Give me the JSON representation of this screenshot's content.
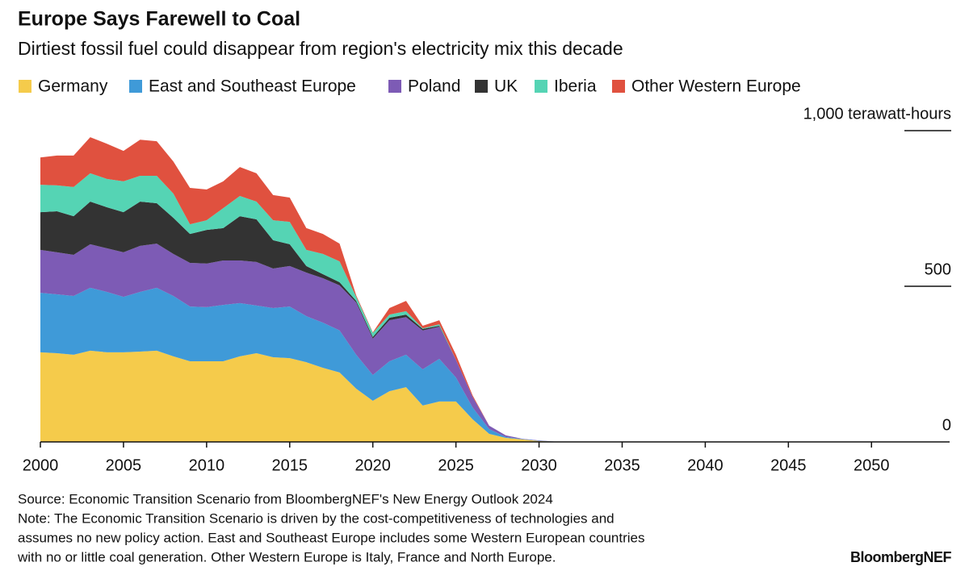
{
  "chart_data": {
    "type": "stacked_area",
    "title": "Europe Says Farewell to Coal",
    "subtitle": "Dirtiest fossil fuel could disappear from region's electricity mix this decade",
    "x": [
      2000,
      2001,
      2002,
      2003,
      2004,
      2005,
      2006,
      2007,
      2008,
      2009,
      2010,
      2011,
      2012,
      2013,
      2014,
      2015,
      2016,
      2017,
      2018,
      2019,
      2020,
      2021,
      2022,
      2023,
      2024,
      2025,
      2026,
      2027,
      2028,
      2029,
      2030,
      2031,
      2032
    ],
    "series": [
      {
        "name": "Germany",
        "color": "#f5cb4b",
        "values": [
          288,
          285,
          280,
          293,
          288,
          288,
          290,
          293,
          275,
          259,
          259,
          259,
          275,
          285,
          272,
          269,
          256,
          238,
          223,
          171,
          132,
          163,
          176,
          117,
          130,
          130,
          73,
          26,
          13,
          8,
          3,
          1,
          0
        ]
      },
      {
        "name": "East and Southeast Europe",
        "color": "#3f9ad8",
        "values": [
          191,
          189,
          189,
          202,
          194,
          178,
          192,
          202,
          194,
          176,
          174,
          181,
          171,
          153,
          158,
          166,
          148,
          145,
          135,
          109,
          83,
          96,
          104,
          116,
          137,
          77,
          38,
          15,
          3,
          1,
          1,
          0,
          0
        ]
      },
      {
        "name": "Poland",
        "color": "#7d5bb5",
        "values": [
          138,
          135,
          132,
          140,
          140,
          143,
          148,
          142,
          135,
          140,
          140,
          143,
          137,
          140,
          127,
          130,
          140,
          143,
          145,
          168,
          117,
          132,
          121,
          125,
          103,
          57,
          34,
          11,
          5,
          1,
          1,
          0,
          0
        ]
      },
      {
        "name": "UK",
        "color": "#333333",
        "values": [
          121,
          132,
          124,
          137,
          132,
          129,
          142,
          130,
          116,
          93,
          108,
          104,
          142,
          137,
          91,
          70,
          21,
          13,
          10,
          5,
          5,
          8,
          8,
          5,
          3,
          0,
          0,
          0,
          0,
          0,
          0,
          0,
          0
        ]
      },
      {
        "name": "Iberia",
        "color": "#55d4b4",
        "values": [
          88,
          83,
          94,
          91,
          91,
          99,
          83,
          88,
          78,
          31,
          31,
          64,
          65,
          57,
          64,
          72,
          52,
          65,
          67,
          13,
          13,
          10,
          11,
          2,
          5,
          0,
          0,
          0,
          0,
          0,
          0,
          0,
          0
        ]
      },
      {
        "name": "Other Western Europe",
        "color": "#e0513f",
        "values": [
          88,
          96,
          101,
          116,
          113,
          98,
          116,
          111,
          103,
          117,
          99,
          86,
          93,
          91,
          81,
          78,
          70,
          64,
          57,
          5,
          2,
          21,
          33,
          8,
          13,
          16,
          5,
          0,
          0,
          0,
          0,
          0,
          0
        ]
      }
    ],
    "xlim": [
      2000,
      2054.7
    ],
    "xticks": [
      2000,
      2005,
      2010,
      2015,
      2020,
      2025,
      2030,
      2035,
      2040,
      2045,
      2050
    ],
    "ylim": [
      0,
      1000
    ],
    "yticks": [
      0,
      500,
      {
        "value": 1000,
        "label": "1,000 terawatt-hours"
      }
    ],
    "source": "Source: Economic Transition Scenario from BloombergNEF's New Energy Outlook 2024",
    "note": [
      "Note: The Economic Transition Scenario is driven by the cost-competitiveness of technologies and",
      "assumes no new policy action. East and Southeast Europe includes some Western European countries",
      "with no or little coal generation. Other Western Europe is Italy, France and North Europe."
    ],
    "logo": "BloombergNEF"
  }
}
